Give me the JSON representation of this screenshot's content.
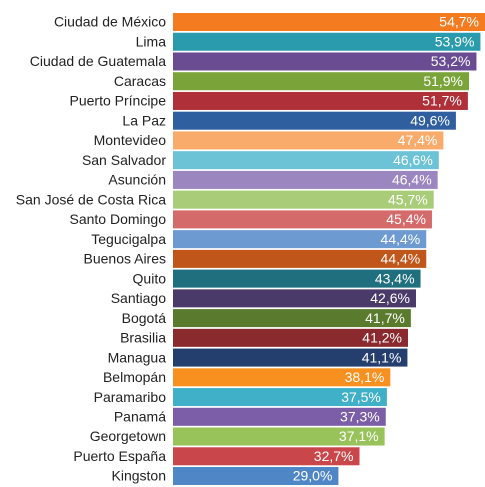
{
  "chart_data": {
    "type": "barh",
    "categories": [
      "Ciudad de México",
      "Lima",
      "Ciudad de Guatemala",
      "Caracas",
      "Puerto Príncipe",
      "La Paz",
      "Montevideo",
      "San Salvador",
      "Asunción",
      "San José de Costa Rica",
      "Santo Domingo",
      "Tegucigalpa",
      "Buenos Aires",
      "Quito",
      "Santiago",
      "Bogotá",
      "Brasilia",
      "Managua",
      "Belmopán",
      "Paramaribo",
      "Panamá",
      "Georgetown",
      "Puerto España",
      "Kingston"
    ],
    "values": [
      54.7,
      53.9,
      53.2,
      51.9,
      51.7,
      49.6,
      47.4,
      46.6,
      46.4,
      45.7,
      45.4,
      44.4,
      44.4,
      43.4,
      42.6,
      41.7,
      41.2,
      41.1,
      38.1,
      37.5,
      37.3,
      37.1,
      32.7,
      29.0
    ],
    "value_labels": [
      "54,7%",
      "53,9%",
      "53,2%",
      "51,9%",
      "51,7%",
      "49,6%",
      "47,4%",
      "46,6%",
      "46,4%",
      "45,7%",
      "45,4%",
      "44,4%",
      "44,4%",
      "43,4%",
      "42,6%",
      "41,7%",
      "41,2%",
      "41,1%",
      "38,1%",
      "37,5%",
      "37,3%",
      "37,1%",
      "32,7%",
      "29,0%"
    ],
    "colors": [
      "#f47b20",
      "#2a9bad",
      "#6a4c93",
      "#7aa33a",
      "#b0303a",
      "#2f5f9e",
      "#f9ab6b",
      "#6cc3d6",
      "#9b86c0",
      "#a8cc78",
      "#d46a6a",
      "#6d9ad0",
      "#c0561a",
      "#1f6f7e",
      "#4a3a6a",
      "#5a7a2e",
      "#8a2a2e",
      "#243f6e",
      "#f7901e",
      "#3fb0c8",
      "#7b5ea7",
      "#98c25a",
      "#c9474a",
      "#4f86c6"
    ]
  }
}
